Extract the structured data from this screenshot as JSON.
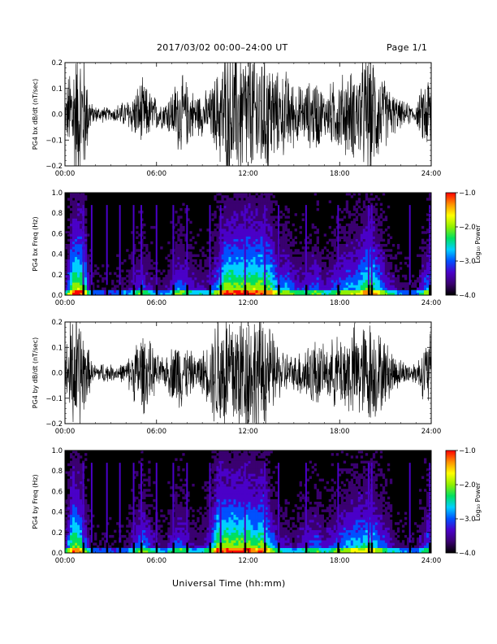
{
  "header": {
    "title": "2017/03/02  00:00–24:00 UT",
    "page": "Page 1/1"
  },
  "chart_data": [
    {
      "type": "line",
      "id": "bx_dbdt",
      "ylabel": "PG4 bx dB/dt (nT/sec)",
      "ylim": [
        -0.2,
        0.2
      ],
      "yticks": [
        -0.2,
        -0.1,
        0.0,
        0.1,
        0.2
      ],
      "ytick_labels": [
        "−0.2",
        "−0.1",
        "0.0",
        "0.1",
        "0.2"
      ],
      "xlim": [
        0,
        24
      ],
      "xticks": [
        0,
        6,
        12,
        18,
        24
      ],
      "xtick_labels": [
        "00:00",
        "06:00",
        "12:00",
        "18:00",
        "24:00"
      ],
      "color": "#000000",
      "envelope_hours": [
        0,
        0.5,
        1,
        1.25,
        1.5,
        1.75,
        2,
        2.5,
        3,
        3.5,
        4,
        4.5,
        5,
        5.5,
        6,
        6.5,
        7,
        7.5,
        8,
        8.5,
        9,
        9.5,
        10,
        10.5,
        11,
        11.5,
        12,
        12.5,
        13,
        13.5,
        14,
        14.5,
        15,
        15.5,
        16,
        16.5,
        17,
        17.5,
        18,
        18.5,
        19,
        19.5,
        20,
        20.5,
        21,
        21.5,
        22,
        22.5,
        23,
        23.5,
        24
      ],
      "envelope_amplitude": [
        0.06,
        0.25,
        0.25,
        0.25,
        0.12,
        0.04,
        0.03,
        0.03,
        0.02,
        0.04,
        0.05,
        0.08,
        0.13,
        0.09,
        0.06,
        0.05,
        0.09,
        0.15,
        0.12,
        0.08,
        0.08,
        0.09,
        0.16,
        0.25,
        0.25,
        0.25,
        0.25,
        0.25,
        0.25,
        0.22,
        0.14,
        0.16,
        0.12,
        0.1,
        0.12,
        0.14,
        0.08,
        0.12,
        0.14,
        0.16,
        0.16,
        0.2,
        0.25,
        0.18,
        0.12,
        0.08,
        0.05,
        0.04,
        0.03,
        0.12,
        0.18
      ]
    },
    {
      "type": "heatmap",
      "id": "bx_freq",
      "ylabel": "PG4 bx Freq (Hz)",
      "ylim": [
        0.0,
        1.0
      ],
      "yticks": [
        0.0,
        0.2,
        0.4,
        0.6,
        0.8,
        1.0
      ],
      "ytick_labels": [
        "0.0",
        "0.2",
        "0.4",
        "0.6",
        "0.8",
        "1.0"
      ],
      "xlim": [
        0,
        24
      ],
      "xticks": [
        0,
        6,
        12,
        18,
        24
      ],
      "xtick_labels": [
        "00:00",
        "06:00",
        "12:00",
        "18:00",
        "24:00"
      ],
      "colorbar": {
        "label": "Log₁₀ Power",
        "range": [
          -4.0,
          -1.0
        ],
        "ticks": [
          -1.0,
          -2.0,
          -3.0,
          -4.0
        ],
        "tick_labels": [
          "−1.0",
          "−2.0",
          "−3.0",
          "−4.0"
        ],
        "colors": [
          "#000000",
          "#3a0070",
          "#4a00c8",
          "#0050ff",
          "#00d0ff",
          "#00e060",
          "#90f000",
          "#ffff00",
          "#ff9000",
          "#ff0000"
        ]
      },
      "dropout_hours": [
        1.2,
        1.75,
        2.75,
        3.6,
        4.5,
        5.0,
        6.0,
        7.1,
        8.0,
        9.5,
        10.2,
        11.8,
        13.1,
        14.0,
        15.8,
        17.9,
        19.9,
        20.1,
        22.6,
        23.9
      ]
    },
    {
      "type": "line",
      "id": "by_dbdt",
      "ylabel": "PG4 by dB/dt (nT/sec)",
      "ylim": [
        -0.2,
        0.2
      ],
      "yticks": [
        -0.2,
        -0.1,
        0.0,
        0.1,
        0.2
      ],
      "ytick_labels": [
        "−0.2",
        "−0.1",
        "0.0",
        "0.1",
        "0.2"
      ],
      "xlim": [
        0,
        24
      ],
      "xticks": [
        0,
        6,
        12,
        18,
        24
      ],
      "xtick_labels": [
        "00:00",
        "06:00",
        "12:00",
        "18:00",
        "24:00"
      ],
      "color": "#000000",
      "envelope_hours": [
        0,
        0.5,
        1,
        1.25,
        1.5,
        1.75,
        2,
        2.5,
        3,
        3.5,
        4,
        4.5,
        5,
        5.5,
        6,
        6.5,
        7,
        7.5,
        8,
        8.5,
        9,
        9.5,
        10,
        10.5,
        11,
        11.5,
        12,
        12.5,
        13,
        13.5,
        14,
        14.5,
        15,
        15.5,
        16,
        16.5,
        17,
        17.5,
        18,
        18.5,
        19,
        19.5,
        20,
        20.5,
        21,
        21.5,
        22,
        22.5,
        23,
        23.5,
        24
      ],
      "envelope_amplitude": [
        0.08,
        0.25,
        0.22,
        0.16,
        0.1,
        0.04,
        0.03,
        0.04,
        0.03,
        0.03,
        0.04,
        0.1,
        0.16,
        0.12,
        0.07,
        0.05,
        0.1,
        0.14,
        0.1,
        0.06,
        0.08,
        0.12,
        0.25,
        0.25,
        0.25,
        0.25,
        0.25,
        0.22,
        0.25,
        0.16,
        0.1,
        0.08,
        0.06,
        0.1,
        0.12,
        0.13,
        0.09,
        0.12,
        0.14,
        0.16,
        0.18,
        0.18,
        0.2,
        0.16,
        0.12,
        0.08,
        0.05,
        0.04,
        0.04,
        0.1,
        0.16
      ]
    },
    {
      "type": "heatmap",
      "id": "by_freq",
      "ylabel": "PG4 by Freq (Hz)",
      "ylim": [
        0.0,
        1.0
      ],
      "yticks": [
        0.0,
        0.2,
        0.4,
        0.6,
        0.8,
        1.0
      ],
      "ytick_labels": [
        "0.0",
        "0.2",
        "0.4",
        "0.6",
        "0.8",
        "1.0"
      ],
      "xlim": [
        0,
        24
      ],
      "xticks": [
        0,
        6,
        12,
        18,
        24
      ],
      "xtick_labels": [
        "00:00",
        "06:00",
        "12:00",
        "18:00",
        "24:00"
      ],
      "colorbar": {
        "label": "Log₁₀ Power",
        "range": [
          -4.0,
          -1.0
        ],
        "ticks": [
          -1.0,
          -2.0,
          -3.0,
          -4.0
        ],
        "tick_labels": [
          "−1.0",
          "−2.0",
          "−3.0",
          "−4.0"
        ],
        "colors": [
          "#000000",
          "#3a0070",
          "#4a00c8",
          "#0050ff",
          "#00d0ff",
          "#00e060",
          "#90f000",
          "#ffff00",
          "#ff9000",
          "#ff0000"
        ]
      },
      "dropout_hours": [
        1.2,
        1.75,
        2.75,
        3.6,
        4.5,
        5.0,
        6.0,
        7.1,
        8.0,
        9.5,
        10.2,
        11.8,
        13.1,
        14.0,
        15.8,
        17.9,
        19.9,
        20.1,
        22.6,
        23.9
      ]
    }
  ],
  "xlabel": "Universal Time (hh:mm)"
}
